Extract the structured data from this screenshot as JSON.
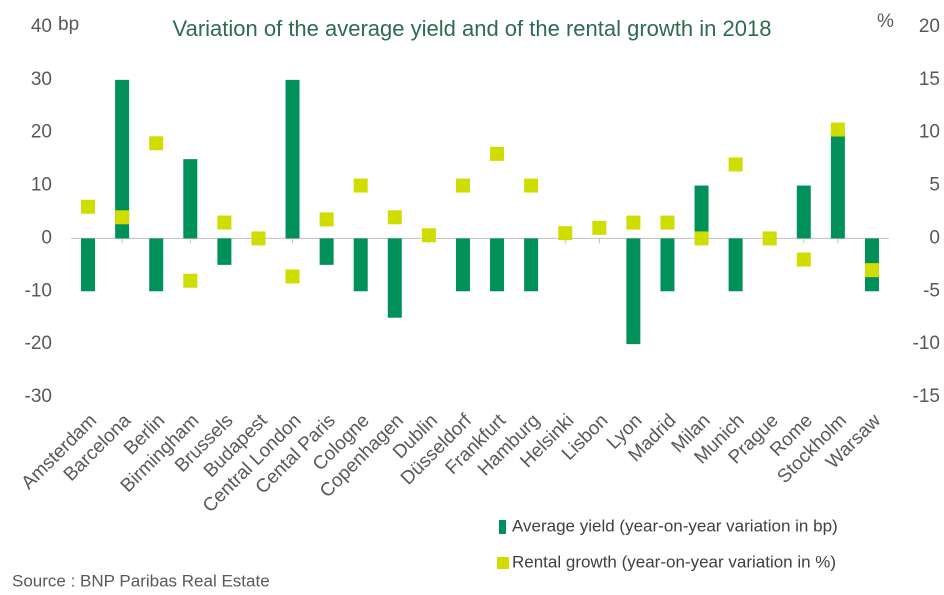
{
  "chart_data": {
    "type": "bar_scatter",
    "title": "Variation of the average yield and of the rental growth in 2018",
    "y_label": "bp",
    "y2_label": "%",
    "source": "Source : BNP Paribas Real Estate",
    "categories": [
      "Amsterdam",
      "Barcelona",
      "Berlin",
      "Birmingham",
      "Brussels",
      "Budapest",
      "Central London",
      "Cental Paris",
      "Cologne",
      "Copenhagen",
      "Dublin",
      "Düsseldorf",
      "Frankfurt",
      "Hamburg",
      "Helsinki",
      "Lisbon",
      "Lyon",
      "Madrid",
      "Milan",
      "Munich",
      "Prague",
      "Rome",
      "Stockholm",
      "Warsaw"
    ],
    "series": [
      {
        "name": "Average yield (year-on-year variation in bp)",
        "color": "#00915a",
        "kind": "bar",
        "values": [
          -10,
          30,
          -10,
          15,
          -5,
          0,
          30,
          -5,
          -10,
          -15,
          0,
          -10,
          -10,
          -10,
          0,
          0,
          -20,
          -10,
          10,
          -10,
          0,
          10,
          20,
          -10
        ]
      },
      {
        "name": "Rental growth (year-on-year variation in %)",
        "color": "#cfdd00",
        "kind": "marker",
        "axis": "y2",
        "values": [
          3,
          2,
          9,
          -4,
          1.5,
          0,
          -3.6,
          1.8,
          5,
          2,
          0.3,
          5,
          8,
          5,
          0.5,
          1,
          1.5,
          1.5,
          0,
          7,
          0,
          -2,
          10.3,
          -3
        ]
      }
    ],
    "ylim": [
      -30,
      40
    ],
    "yticks": [
      -30,
      -20,
      -10,
      0,
      10,
      20,
      30,
      40
    ],
    "y2lim": [
      -15,
      20
    ],
    "y2ticks": [
      -15,
      -10,
      -5,
      0,
      5,
      10,
      15,
      20
    ]
  }
}
